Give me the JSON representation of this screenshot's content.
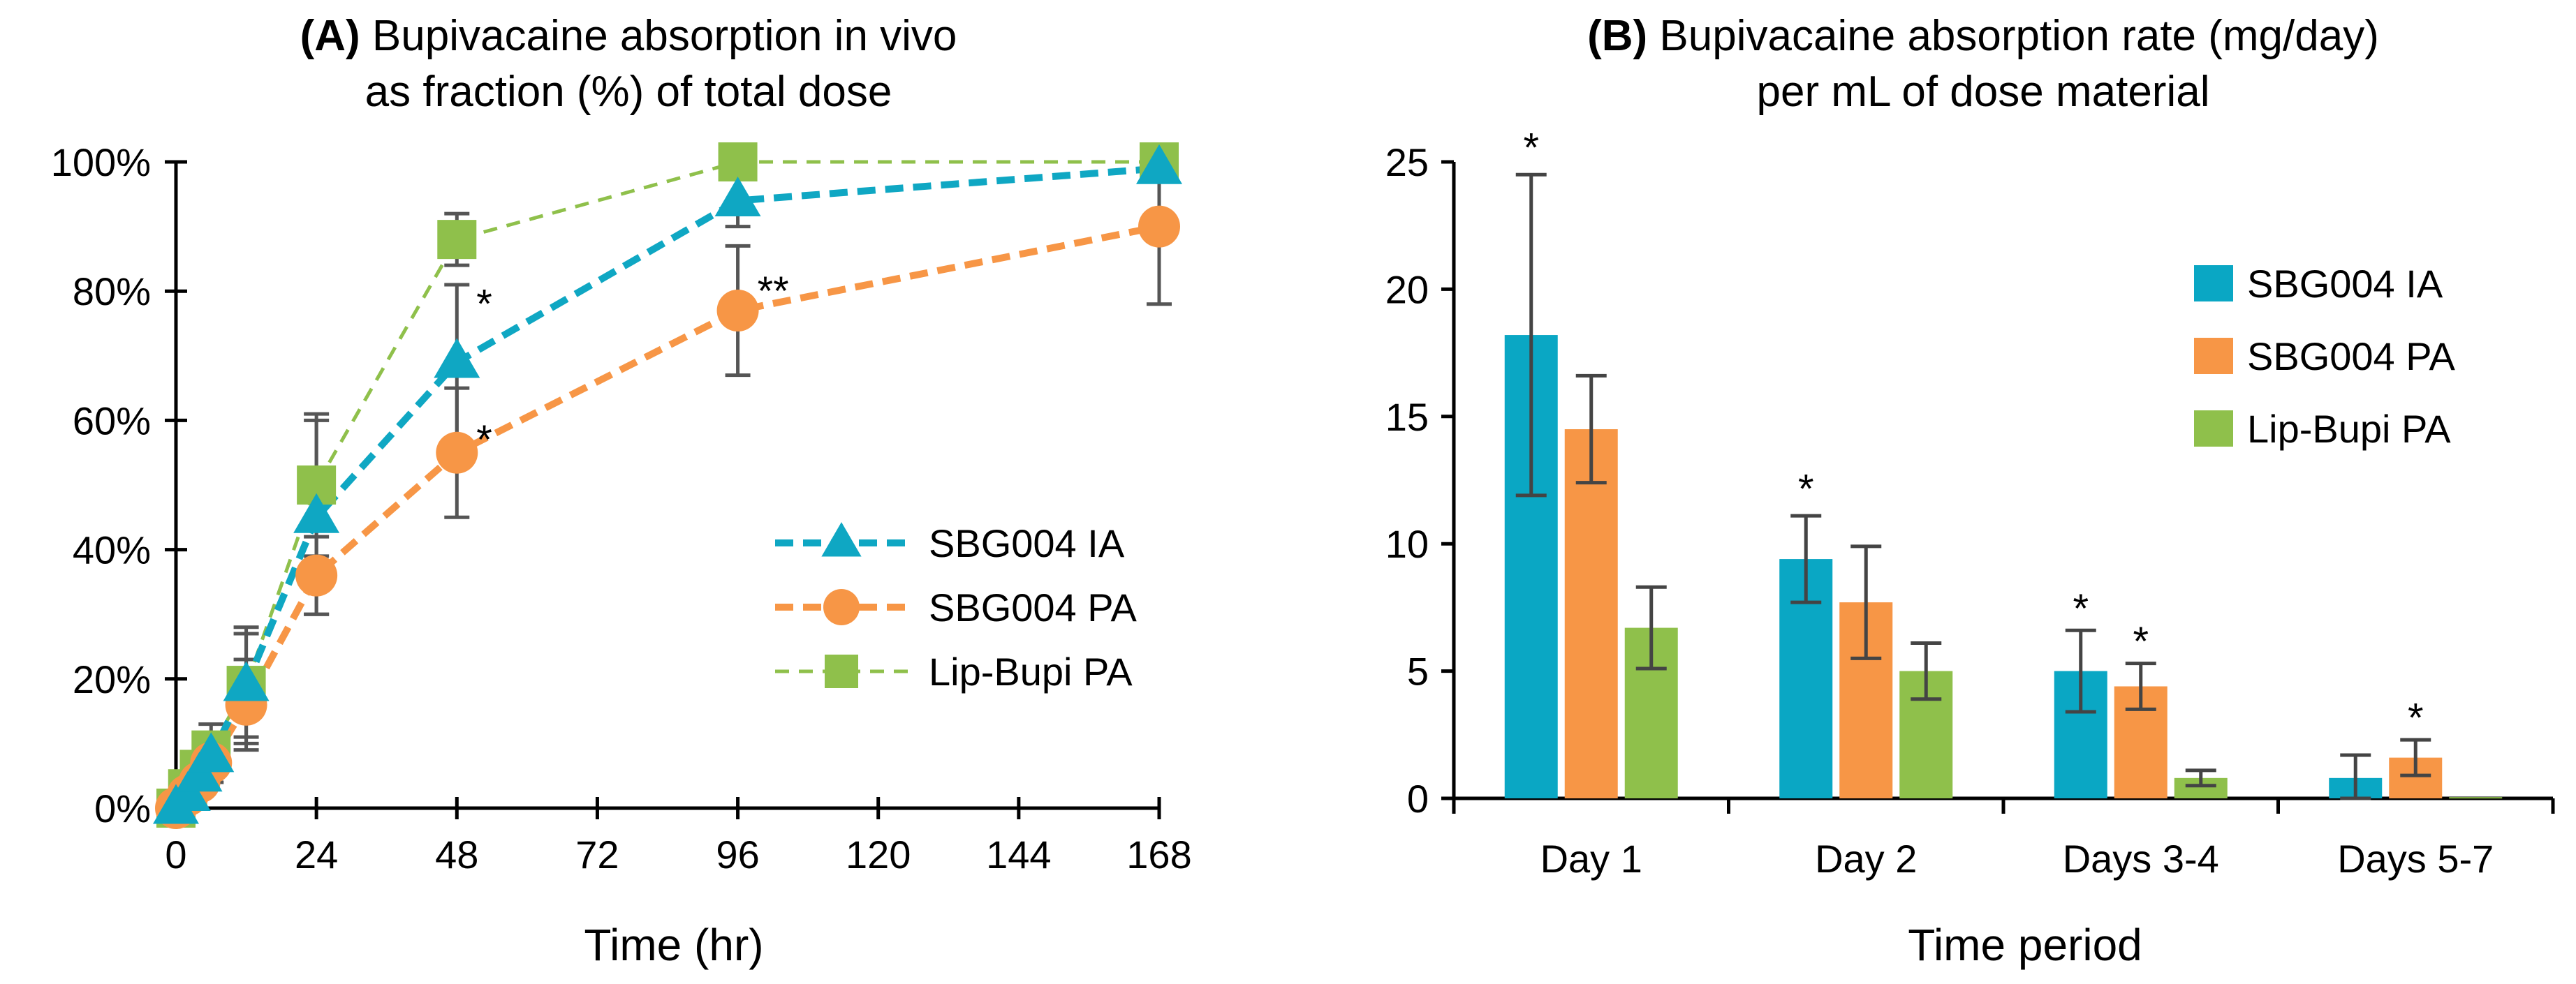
{
  "chart_data": [
    {
      "type": "line",
      "panel": "A",
      "title_lines": [
        "Bupivacaine absorption in vivo",
        "as fraction (%) of total dose"
      ],
      "xlabel": "Time (hr)",
      "ylabel": "",
      "xlim": [
        0,
        168
      ],
      "ylim": [
        0,
        100
      ],
      "x_ticks": [
        0,
        24,
        48,
        72,
        96,
        120,
        144,
        168
      ],
      "y_ticks": [
        0,
        20,
        40,
        60,
        80,
        100
      ],
      "y_tick_labels": [
        "0%",
        "20%",
        "40%",
        "60%",
        "80%",
        "100%"
      ],
      "legend_position": "center-right",
      "series": [
        {
          "name": "SBG004 IA",
          "color": "#0fa7c3",
          "marker": "triangle",
          "x": [
            0,
            2,
            4,
            6,
            12,
            24,
            48,
            96,
            168
          ],
          "y": [
            0,
            2,
            5,
            8,
            19,
            45,
            69,
            94,
            99
          ],
          "err": [
            0,
            1,
            2,
            3,
            8,
            15,
            12,
            4,
            2
          ]
        },
        {
          "name": "SBG004 PA",
          "color": "#f79646",
          "marker": "circle",
          "x": [
            0,
            2,
            4,
            6,
            12,
            24,
            48,
            96,
            168
          ],
          "y": [
            0,
            2,
            4,
            7,
            16,
            36,
            55,
            77,
            90
          ],
          "err": [
            0,
            1,
            2,
            3,
            7,
            6,
            10,
            10,
            12
          ]
        },
        {
          "name": "Lip-Bupi PA",
          "color": "#8fc04b",
          "marker": "square",
          "x": [
            0,
            2,
            4,
            6,
            12,
            24,
            48,
            96,
            168
          ],
          "y": [
            0,
            3,
            6,
            9,
            19,
            50,
            88,
            100,
            100
          ],
          "err": [
            0,
            1,
            2,
            4,
            9,
            11,
            4,
            0,
            0
          ]
        }
      ],
      "annotations": [
        {
          "x": 48,
          "y": 78,
          "text": "*"
        },
        {
          "x": 48,
          "y": 57,
          "text": "*"
        },
        {
          "x": 96,
          "y": 80,
          "text": "**"
        }
      ]
    },
    {
      "type": "bar",
      "panel": "B",
      "title_lines": [
        "Bupivacaine absorption rate (mg/day)",
        "per mL of dose material"
      ],
      "xlabel": "Time period",
      "ylabel": "",
      "categories": [
        "Day 1",
        "Day 2",
        "Days 3-4",
        "Days 5-7"
      ],
      "ylim": [
        0,
        25
      ],
      "y_ticks": [
        0,
        5,
        10,
        15,
        20,
        25
      ],
      "legend_position": "top-right",
      "series": [
        {
          "name": "SBG004 IA",
          "color": "#0aa7c4",
          "values": [
            18.2,
            9.4,
            5.0,
            0.8
          ],
          "err": [
            6.3,
            1.7,
            1.6,
            0.9
          ]
        },
        {
          "name": "SBG004 PA",
          "color": "#f79646",
          "values": [
            14.5,
            7.7,
            4.4,
            1.6
          ],
          "err": [
            2.1,
            2.2,
            0.9,
            0.7
          ]
        },
        {
          "name": "Lip-Bupi PA",
          "color": "#8fc04b",
          "values": [
            6.7,
            5.0,
            0.8,
            0.05
          ],
          "err": [
            1.6,
            1.1,
            0.3,
            0.0
          ]
        }
      ],
      "annotations": [
        {
          "category": 0,
          "series": 0,
          "value": 26.0,
          "text": "*"
        },
        {
          "category": 1,
          "series": 0,
          "value": 12.6,
          "text": "*"
        },
        {
          "category": 2,
          "series": 0,
          "value": 7.9,
          "text": "*"
        },
        {
          "category": 2,
          "series": 1,
          "value": 6.6,
          "text": "*"
        },
        {
          "category": 3,
          "series": 1,
          "value": 3.6,
          "text": "*"
        }
      ]
    }
  ]
}
